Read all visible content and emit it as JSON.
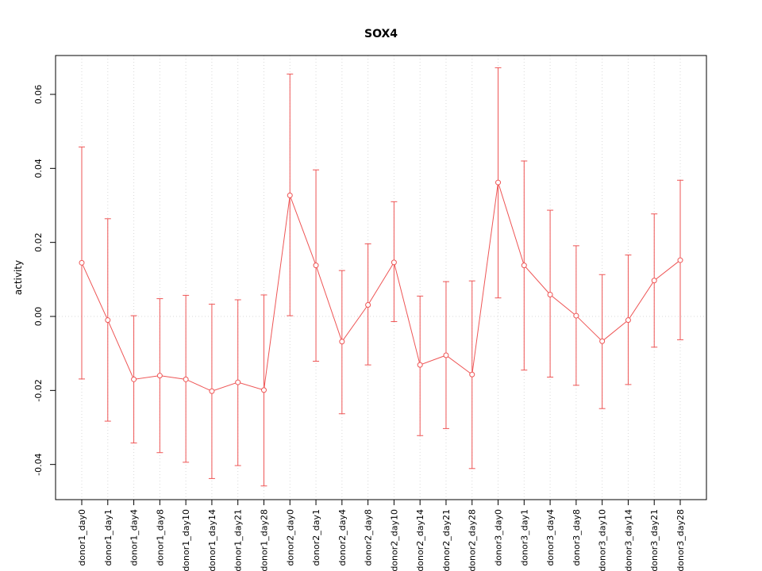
{
  "chart_data": {
    "type": "line",
    "title": "SOX4",
    "xlabel": "",
    "ylabel": "activity",
    "legend": "none",
    "grid": "dotted vertical per category plus dotted zero line",
    "line_color": "#ee5555",
    "grid_color": "#d9d9d9",
    "ylim": [
      -0.0495,
      0.0705
    ],
    "ytick_values": [
      -0.04,
      -0.02,
      0.0,
      0.02,
      0.04,
      0.06
    ],
    "ytick_labels": [
      "-0.04",
      "-0.02",
      "0.00",
      "0.02",
      "0.04",
      "0.06"
    ],
    "categories": [
      "donor1_day0",
      "donor1_day1",
      "donor1_day4",
      "donor1_day8",
      "donor1_day10",
      "donor1_day14",
      "donor1_day21",
      "donor1_day28",
      "donor2_day0",
      "donor2_day1",
      "donor2_day4",
      "donor2_day8",
      "donor2_day10",
      "donor2_day14",
      "donor2_day21",
      "donor2_day28",
      "donor3_day0",
      "donor3_day1",
      "donor3_day4",
      "donor3_day8",
      "donor3_day10",
      "donor3_day14",
      "donor3_day21",
      "donor3_day28"
    ],
    "values": [
      0.0145,
      -0.001,
      -0.017,
      -0.016,
      -0.017,
      -0.0202,
      -0.0178,
      -0.0199,
      0.0327,
      0.0138,
      -0.0068,
      0.0031,
      0.0146,
      -0.0131,
      -0.0105,
      -0.0157,
      0.0362,
      0.0138,
      0.0059,
      0.0002,
      -0.0067,
      -0.001,
      0.0097,
      0.0152
    ],
    "error_high": [
      0.0458,
      0.0264,
      0.0002,
      0.0048,
      0.0057,
      0.0033,
      0.0045,
      0.0058,
      0.0655,
      0.0396,
      0.0124,
      0.0196,
      0.031,
      0.0055,
      0.0094,
      0.0096,
      0.0672,
      0.042,
      0.0287,
      0.0191,
      0.0113,
      0.0166,
      0.0277,
      0.0368
    ],
    "error_low": [
      -0.0169,
      -0.0283,
      -0.0342,
      -0.0368,
      -0.0394,
      -0.0438,
      -0.0403,
      -0.0458,
      0.0002,
      -0.0121,
      -0.0263,
      -0.0131,
      -0.0014,
      -0.0322,
      -0.0303,
      -0.0411,
      0.005,
      -0.0145,
      -0.0164,
      -0.0186,
      -0.0249,
      -0.0184,
      -0.0083,
      -0.0063
    ]
  }
}
